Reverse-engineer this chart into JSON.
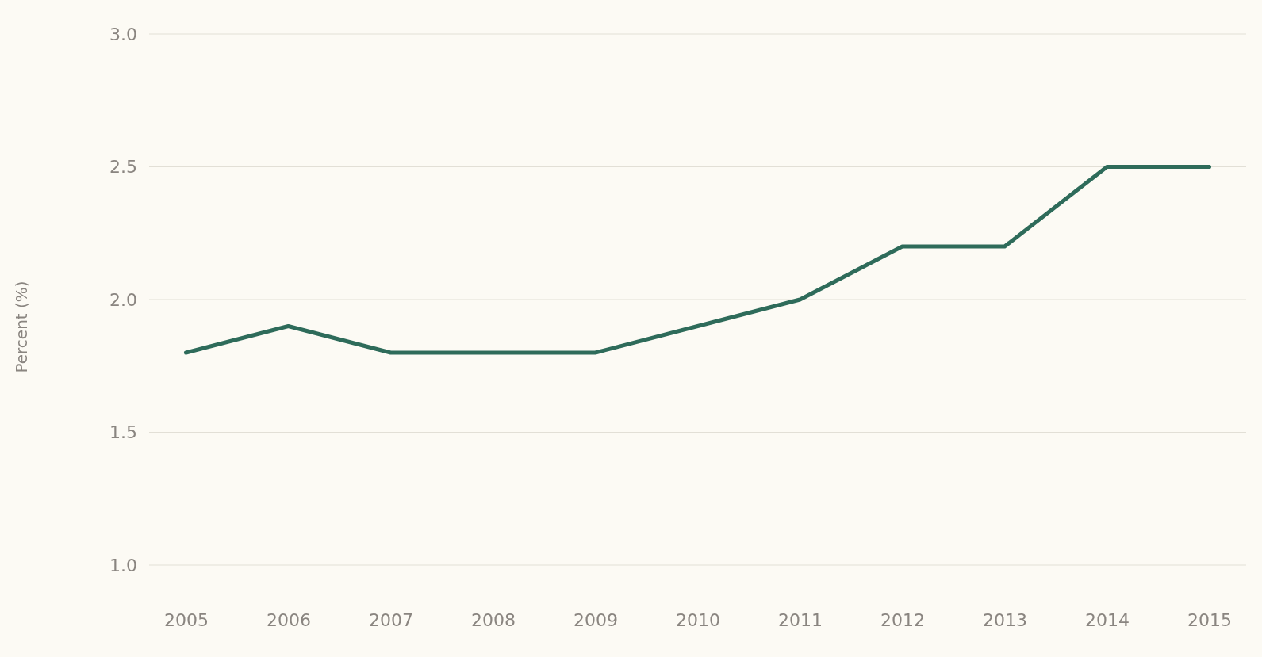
{
  "chart_data": {
    "type": "line",
    "ylabel": "Percent (%)",
    "categories": [
      "2005",
      "2006",
      "2007",
      "2008",
      "2009",
      "2010",
      "2011",
      "2012",
      "2013",
      "2014",
      "2015"
    ],
    "series": [
      {
        "color": "#2e6b5a",
        "values": [
          1.8,
          1.9,
          1.8,
          1.8,
          1.8,
          1.9,
          2.0,
          2.2,
          2.2,
          2.5,
          2.5
        ]
      }
    ],
    "ylim": [
      1.0,
      3.0
    ],
    "yticks": [
      {
        "value": 1,
        "label": "1.0"
      },
      1.5,
      {
        "value": 2,
        "label": "2.0"
      },
      2.5,
      {
        "value": 3,
        "label": "3.0"
      }
    ],
    "grid": "y",
    "marker": "none",
    "line_style": "solid"
  }
}
